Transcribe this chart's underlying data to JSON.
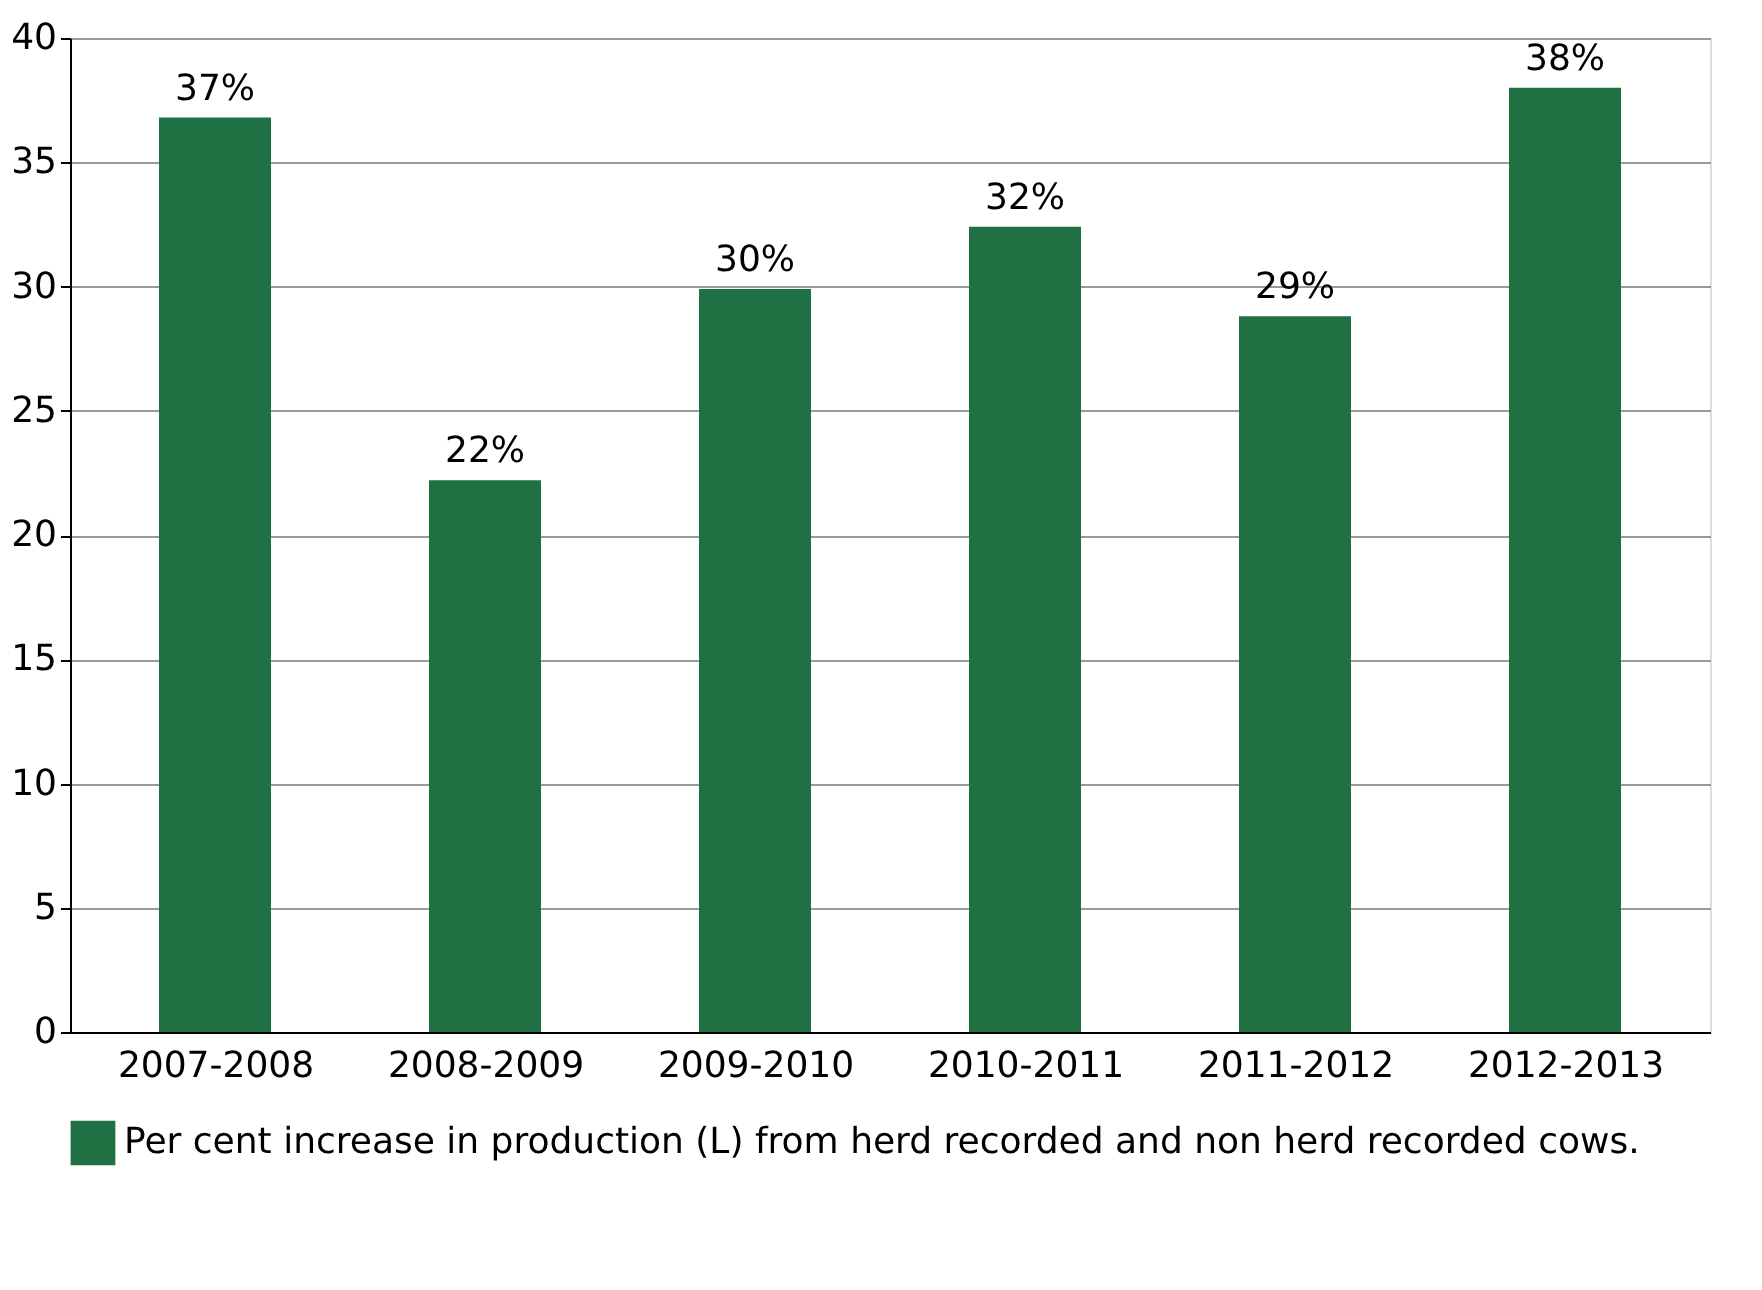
{
  "chart_data": {
    "type": "bar",
    "categories": [
      "2007-2008",
      "2008-2009",
      "2009-2010",
      "2010-2011",
      "2011-2012",
      "2012-2013"
    ],
    "series": [
      {
        "name": "Per cent increase in production (L) from herd recorded and non herd recorded cows.",
        "color": "#1f7043",
        "values": [
          36.8,
          22.2,
          29.9,
          32.4,
          28.8,
          38.0
        ],
        "value_labels": [
          "37%",
          "22%",
          "30%",
          "32%",
          "29%",
          "38%"
        ]
      }
    ],
    "ylim": [
      0,
      40
    ],
    "yticks": [
      0,
      5,
      10,
      15,
      20,
      25,
      30,
      35,
      40
    ],
    "grid": "y",
    "legend": "bottom"
  }
}
